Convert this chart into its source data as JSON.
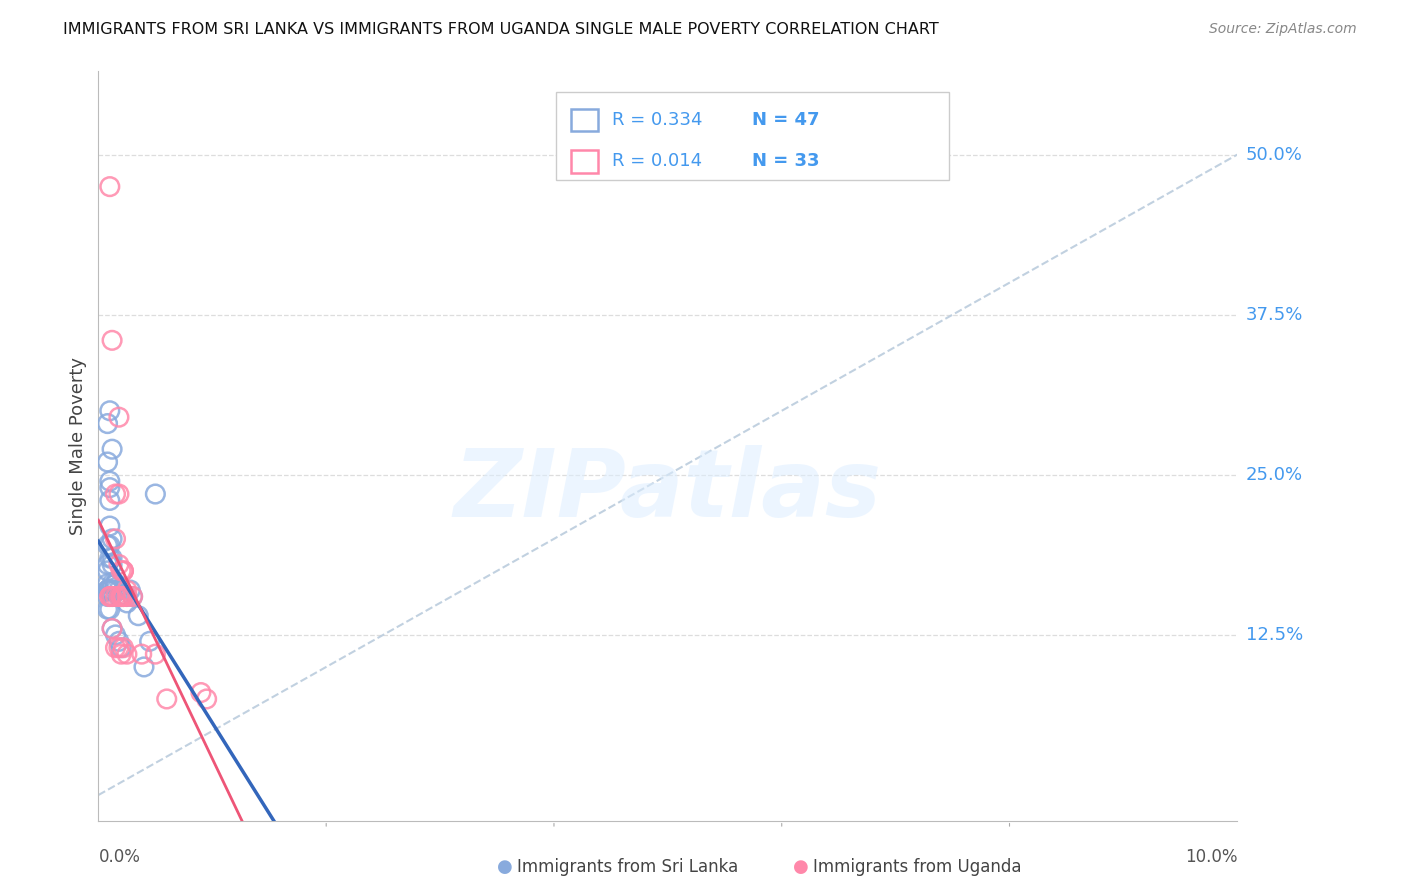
{
  "title": "IMMIGRANTS FROM SRI LANKA VS IMMIGRANTS FROM UGANDA SINGLE MALE POVERTY CORRELATION CHART",
  "source": "Source: ZipAtlas.com",
  "ylabel": "Single Male Poverty",
  "ytick_labels": [
    "50.0%",
    "37.5%",
    "25.0%",
    "12.5%"
  ],
  "ytick_values": [
    0.5,
    0.375,
    0.25,
    0.125
  ],
  "xlim": [
    0.0,
    0.1
  ],
  "ylim": [
    -0.02,
    0.565
  ],
  "legend_blue_R": "R = 0.334",
  "legend_blue_N": "N = 47",
  "legend_pink_R": "R = 0.014",
  "legend_pink_N": "N = 33",
  "legend_label_blue": "Immigrants from Sri Lanka",
  "legend_label_pink": "Immigrants from Uganda",
  "color_blue": "#88AADD",
  "color_pink": "#FF88AA",
  "color_blue_line": "#3366BB",
  "color_pink_line": "#EE5577",
  "color_diag": "#BBCCDD",
  "color_blue_text": "#4499EE",
  "color_grid": "#DDDDDD",
  "watermark_color": "#DDEEFF",
  "sri_lanka_x": [
    0.0008,
    0.001,
    0.0012,
    0.0008,
    0.001,
    0.0008,
    0.001,
    0.0012,
    0.0015,
    0.0008,
    0.001,
    0.0012,
    0.0008,
    0.001,
    0.0008,
    0.001,
    0.0012,
    0.0008,
    0.001,
    0.0012,
    0.0015,
    0.0008,
    0.001,
    0.0012,
    0.0015,
    0.0018,
    0.002,
    0.0008,
    0.001,
    0.0012,
    0.0015,
    0.0018,
    0.0022,
    0.0025,
    0.0008,
    0.001,
    0.0012,
    0.0015,
    0.0018,
    0.002,
    0.0025,
    0.0028,
    0.003,
    0.0035,
    0.004,
    0.0045,
    0.005
  ],
  "sri_lanka_y": [
    0.29,
    0.3,
    0.27,
    0.26,
    0.245,
    0.165,
    0.24,
    0.155,
    0.165,
    0.16,
    0.21,
    0.2,
    0.195,
    0.23,
    0.175,
    0.185,
    0.185,
    0.18,
    0.195,
    0.18,
    0.165,
    0.16,
    0.16,
    0.165,
    0.16,
    0.155,
    0.155,
    0.155,
    0.16,
    0.16,
    0.165,
    0.16,
    0.155,
    0.15,
    0.145,
    0.145,
    0.13,
    0.125,
    0.12,
    0.115,
    0.155,
    0.16,
    0.155,
    0.14,
    0.1,
    0.12,
    0.235
  ],
  "uganda_x": [
    0.001,
    0.0012,
    0.0015,
    0.0018,
    0.0015,
    0.0018,
    0.002,
    0.0022,
    0.0025,
    0.001,
    0.0012,
    0.0015,
    0.0018,
    0.002,
    0.0022,
    0.0018,
    0.002,
    0.0022,
    0.0025,
    0.0022,
    0.001,
    0.0012,
    0.0015,
    0.0018,
    0.002,
    0.0022,
    0.0025,
    0.0038,
    0.005,
    0.006,
    0.009,
    0.0095,
    0.003
  ],
  "uganda_y": [
    0.475,
    0.355,
    0.235,
    0.235,
    0.2,
    0.295,
    0.175,
    0.175,
    0.155,
    0.155,
    0.155,
    0.155,
    0.155,
    0.155,
    0.175,
    0.18,
    0.155,
    0.155,
    0.16,
    0.155,
    0.155,
    0.13,
    0.115,
    0.115,
    0.11,
    0.115,
    0.11,
    0.11,
    0.11,
    0.075,
    0.08,
    0.075,
    0.155
  ]
}
